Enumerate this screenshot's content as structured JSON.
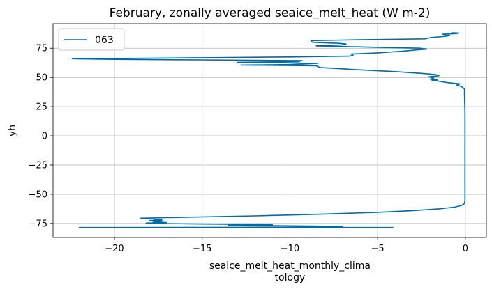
{
  "chart_data": {
    "type": "line",
    "title": "February, zonally averaged seaice_melt_heat (W m-2)",
    "xlabel": [
      "seaice_melt_heat_monthly_clima",
      "tology"
    ],
    "ylabel": "yh",
    "xlim": [
      -23.5,
      1.2
    ],
    "ylim": [
      -87,
      96
    ],
    "xticks": [
      -20,
      -15,
      -10,
      -5,
      0
    ],
    "yticks": [
      -75,
      -50,
      -25,
      0,
      25,
      50,
      75
    ],
    "xtick_labels": [
      "−20",
      "−15",
      "−10",
      "−5",
      "0"
    ],
    "ytick_labels": [
      "−75",
      "−50",
      "−25",
      "0",
      "25",
      "50",
      "75"
    ],
    "grid": true,
    "legend_position": "top-left",
    "series": [
      {
        "name": "063",
        "color": "#006ba4",
        "points": [
          [
            -4.1,
            -78.5
          ],
          [
            -22.0,
            -78.5
          ],
          [
            -13.0,
            -78.3
          ],
          [
            -8.0,
            -78.0
          ],
          [
            -9.5,
            -77.8
          ],
          [
            -7.0,
            -77.5
          ],
          [
            -10.5,
            -77.0
          ],
          [
            -13.5,
            -76.5
          ],
          [
            -11.0,
            -76.0
          ],
          [
            -15.0,
            -75.5
          ],
          [
            -17.5,
            -75.0
          ],
          [
            -18.2,
            -74.6
          ],
          [
            -17.0,
            -74.2
          ],
          [
            -17.8,
            -73.8
          ],
          [
            -17.2,
            -73.0
          ],
          [
            -18.0,
            -72.5
          ],
          [
            -17.3,
            -72.0
          ],
          [
            -17.6,
            -71.5
          ],
          [
            -17.8,
            -71.0
          ],
          [
            -18.5,
            -70.5
          ],
          [
            -17.0,
            -70.0
          ],
          [
            -12.0,
            -68.5
          ],
          [
            -8.0,
            -67.0
          ],
          [
            -5.0,
            -65.5
          ],
          [
            -3.0,
            -64.0
          ],
          [
            -1.5,
            -62.5
          ],
          [
            -0.6,
            -61.0
          ],
          [
            -0.2,
            -59.5
          ],
          [
            -0.05,
            -58.0
          ],
          [
            -0.02,
            -55.0
          ],
          [
            -0.02,
            -40.0
          ],
          [
            -0.02,
            -20.0
          ],
          [
            -0.02,
            0.0
          ],
          [
            -0.02,
            20.0
          ],
          [
            -0.05,
            35.0
          ],
          [
            -0.05,
            40.0
          ],
          [
            -0.2,
            42.0
          ],
          [
            -0.5,
            43.5
          ],
          [
            -0.3,
            44.5
          ],
          [
            -1.0,
            45.5
          ],
          [
            -1.3,
            46.2
          ],
          [
            -1.6,
            47.0
          ],
          [
            -1.9,
            47.5
          ],
          [
            -1.6,
            48.0
          ],
          [
            -2.0,
            48.5
          ],
          [
            -1.8,
            49.5
          ],
          [
            -2.1,
            50.5
          ],
          [
            -1.5,
            51.5
          ],
          [
            -1.7,
            52.5
          ],
          [
            -2.5,
            53.5
          ],
          [
            -4.0,
            55.0
          ],
          [
            -6.0,
            56.5
          ],
          [
            -7.5,
            57.8
          ],
          [
            -8.3,
            58.5
          ],
          [
            -8.5,
            60.0
          ],
          [
            -12.8,
            60.6
          ],
          [
            -10.0,
            61.0
          ],
          [
            -9.2,
            61.5
          ],
          [
            -8.4,
            62.0
          ],
          [
            -9.5,
            62.3
          ],
          [
            -13.0,
            63.0
          ],
          [
            -9.5,
            63.6
          ],
          [
            -9.3,
            64.4
          ],
          [
            -15.0,
            65.0
          ],
          [
            -20.0,
            65.5
          ],
          [
            -22.4,
            66.0
          ],
          [
            -18.0,
            66.5
          ],
          [
            -14.0,
            67.0
          ],
          [
            -10.0,
            67.5
          ],
          [
            -6.6,
            68.2
          ],
          [
            -6.4,
            69.0
          ],
          [
            -6.5,
            70.0
          ],
          [
            -5.0,
            71.0
          ],
          [
            -3.5,
            72.5
          ],
          [
            -2.8,
            73.5
          ],
          [
            -2.2,
            74.2
          ],
          [
            -2.6,
            75.0
          ],
          [
            -5.0,
            75.8
          ],
          [
            -6.5,
            76.3
          ],
          [
            -8.5,
            77.0
          ],
          [
            -7.0,
            77.8
          ],
          [
            -6.8,
            78.6
          ],
          [
            -7.2,
            79.2
          ],
          [
            -8.7,
            80.0
          ],
          [
            -8.8,
            81.5
          ],
          [
            -7.0,
            82.0
          ],
          [
            -4.5,
            82.6
          ],
          [
            -2.3,
            83.0
          ],
          [
            -2.0,
            84.0
          ],
          [
            -1.3,
            85.0
          ],
          [
            -1.0,
            85.5
          ],
          [
            -0.9,
            86.0
          ],
          [
            -1.2,
            86.5
          ],
          [
            -1.3,
            87.0
          ],
          [
            -0.5,
            87.5
          ],
          [
            -0.4,
            88.0
          ],
          [
            -0.8,
            88.3
          ]
        ]
      }
    ]
  }
}
